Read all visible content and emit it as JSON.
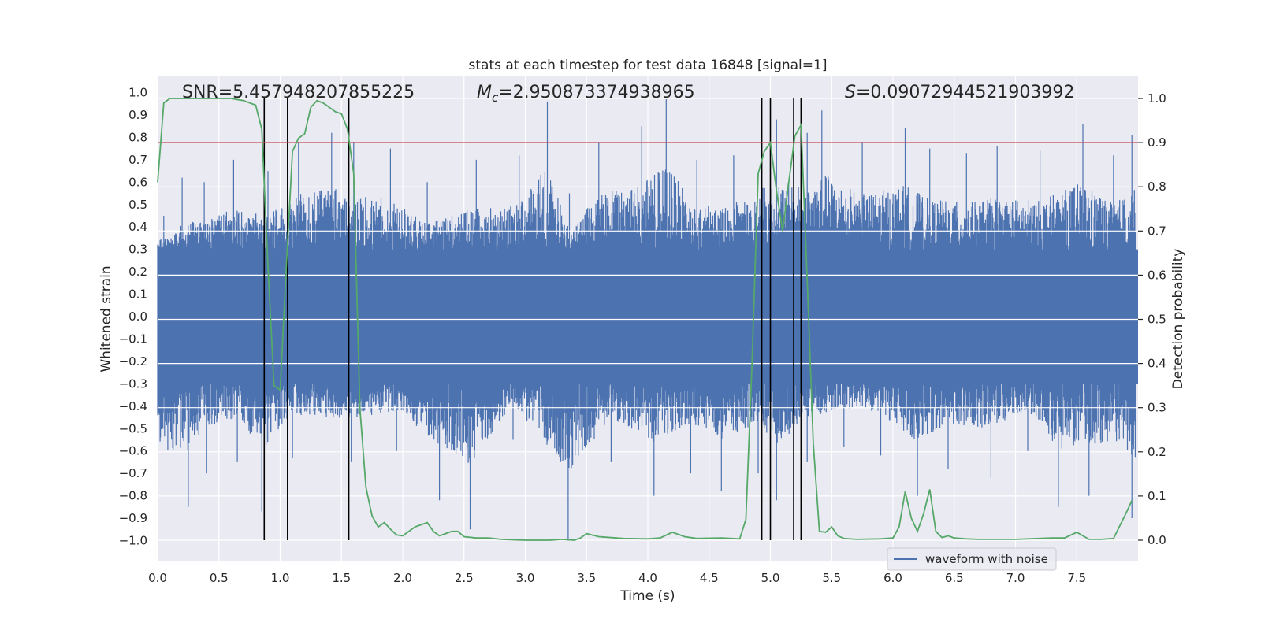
{
  "chart_data": {
    "type": "line",
    "title": "stats at each timestep for test data 16848 [signal=1]",
    "xlabel": "Time (s)",
    "ylabel": "Whitened strain",
    "ylabel_right": "Detection probability",
    "xlim": [
      0.0,
      8.0
    ],
    "ylim": [
      -1.1,
      1.07
    ],
    "ylim_right": [
      -0.05,
      1.03
    ],
    "x_ticks": [
      "0.0",
      "0.5",
      "1.0",
      "1.5",
      "2.0",
      "2.5",
      "3.0",
      "3.5",
      "4.0",
      "4.5",
      "5.0",
      "5.5",
      "6.0",
      "6.5",
      "7.0",
      "7.5"
    ],
    "y_ticks": [
      "1.0",
      "0.9",
      "0.8",
      "0.7",
      "0.6",
      "0.5",
      "0.4",
      "0.3",
      "0.2",
      "0.1",
      "0.0",
      "−0.1",
      "−0.2",
      "−0.3",
      "−0.4",
      "−0.5",
      "−0.6",
      "−0.7",
      "−0.8",
      "−0.9",
      "−1.0"
    ],
    "y_ticks_right": [
      "1.0",
      "0.9",
      "0.8",
      "0.7",
      "0.6",
      "0.5",
      "0.4",
      "0.3",
      "0.2",
      "0.1",
      "0.0"
    ],
    "grid": true,
    "legend": {
      "placement": "lower-right",
      "entries": [
        "waveform with noise"
      ]
    },
    "annotations": {
      "snr": "SNR=5.457948207855225",
      "mc_symbol": "M",
      "mc_sub": "c",
      "mc_value": "=2.950873374938965",
      "s_symbol": "S",
      "s_value": "=0.09072944521903992"
    },
    "threshold": {
      "axis": "right",
      "value": 0.9,
      "color": "#c44e52"
    },
    "vertical_lines_x": [
      0.87,
      1.06,
      1.56,
      4.93,
      5.0,
      5.19,
      5.25
    ],
    "series": [
      {
        "name": "waveform with noise",
        "axis": "left",
        "color": "#4c72b0",
        "note_display": "dense noisy strain trace; peaks listed",
        "peaks_x": [
          0.05,
          0.2,
          0.38,
          0.62,
          0.9,
          1.15,
          1.42,
          1.6,
          1.9,
          2.2,
          2.6,
          2.95,
          3.18,
          3.36,
          3.6,
          3.95,
          4.15,
          4.4,
          4.7,
          5.05,
          5.3,
          5.42,
          5.75,
          6.1,
          6.3,
          6.6,
          6.85,
          7.2,
          7.55,
          7.8,
          7.95
        ],
        "peaks_y": [
          0.45,
          0.62,
          0.6,
          0.7,
          0.65,
          0.78,
          0.82,
          0.78,
          0.75,
          0.6,
          0.7,
          0.72,
          0.96,
          0.55,
          0.78,
          0.85,
          0.97,
          0.7,
          0.72,
          0.88,
          0.82,
          0.92,
          0.78,
          0.84,
          0.75,
          0.73,
          0.76,
          0.74,
          0.86,
          0.72,
          0.81
        ],
        "troughs_x": [
          0.25,
          0.4,
          0.65,
          0.85,
          1.1,
          1.58,
          1.95,
          2.3,
          2.55,
          2.9,
          3.35,
          3.7,
          4.05,
          4.35,
          4.6,
          4.9,
          5.05,
          5.3,
          5.6,
          5.9,
          6.2,
          6.45,
          6.8,
          7.1,
          7.35,
          7.6,
          7.95
        ],
        "troughs_y": [
          -0.85,
          -0.7,
          -0.65,
          -0.87,
          -0.63,
          -0.65,
          -0.6,
          -0.82,
          -0.95,
          -0.55,
          -1.0,
          -0.65,
          -0.8,
          -0.7,
          -0.78,
          -0.7,
          -0.82,
          -0.65,
          -0.58,
          -0.62,
          -0.8,
          -0.68,
          -0.72,
          -0.6,
          -0.85,
          -0.8,
          -0.9
        ]
      },
      {
        "name": "",
        "axis": "right",
        "color": "#55a868",
        "x": [
          0.0,
          0.05,
          0.1,
          0.2,
          0.3,
          0.4,
          0.5,
          0.6,
          0.7,
          0.8,
          0.85,
          0.9,
          0.95,
          1.0,
          1.05,
          1.1,
          1.15,
          1.2,
          1.25,
          1.3,
          1.35,
          1.4,
          1.45,
          1.5,
          1.55,
          1.6,
          1.65,
          1.7,
          1.75,
          1.8,
          1.85,
          1.9,
          1.95,
          2.0,
          2.1,
          2.2,
          2.25,
          2.3,
          2.35,
          2.4,
          2.45,
          2.5,
          2.6,
          2.7,
          2.8,
          3.0,
          3.2,
          3.3,
          3.4,
          3.45,
          3.5,
          3.6,
          3.8,
          4.0,
          4.1,
          4.2,
          4.3,
          4.4,
          4.6,
          4.75,
          4.8,
          4.85,
          4.9,
          4.95,
          5.0,
          5.05,
          5.1,
          5.15,
          5.2,
          5.25,
          5.3,
          5.35,
          5.4,
          5.45,
          5.5,
          5.55,
          5.6,
          5.7,
          5.9,
          6.0,
          6.05,
          6.1,
          6.15,
          6.2,
          6.25,
          6.3,
          6.35,
          6.4,
          6.45,
          6.5,
          6.6,
          6.7,
          7.0,
          7.3,
          7.4,
          7.5,
          7.55,
          7.6,
          7.7,
          7.8,
          7.9,
          7.95
        ],
        "y": [
          0.81,
          0.99,
          1.0,
          1.0,
          1.0,
          1.0,
          1.0,
          1.0,
          0.995,
          0.985,
          0.93,
          0.62,
          0.35,
          0.34,
          0.62,
          0.88,
          0.91,
          0.92,
          0.98,
          0.995,
          0.99,
          0.98,
          0.97,
          0.965,
          0.93,
          0.83,
          0.3,
          0.12,
          0.055,
          0.03,
          0.04,
          0.025,
          0.012,
          0.01,
          0.03,
          0.04,
          0.02,
          0.01,
          0.015,
          0.02,
          0.02,
          0.008,
          0.005,
          0.005,
          0.002,
          0.0,
          0.0,
          0.002,
          0.0,
          0.005,
          0.015,
          0.008,
          0.004,
          0.003,
          0.005,
          0.018,
          0.008,
          0.004,
          0.005,
          0.003,
          0.047,
          0.4,
          0.83,
          0.88,
          0.9,
          0.79,
          0.7,
          0.81,
          0.915,
          0.94,
          0.59,
          0.22,
          0.02,
          0.018,
          0.03,
          0.01,
          0.004,
          0.002,
          0.003,
          0.005,
          0.03,
          0.11,
          0.05,
          0.02,
          0.06,
          0.115,
          0.02,
          0.006,
          0.01,
          0.005,
          0.003,
          0.002,
          0.002,
          0.005,
          0.005,
          0.018,
          0.01,
          0.002,
          0.002,
          0.004,
          0.06,
          0.09
        ]
      }
    ]
  }
}
